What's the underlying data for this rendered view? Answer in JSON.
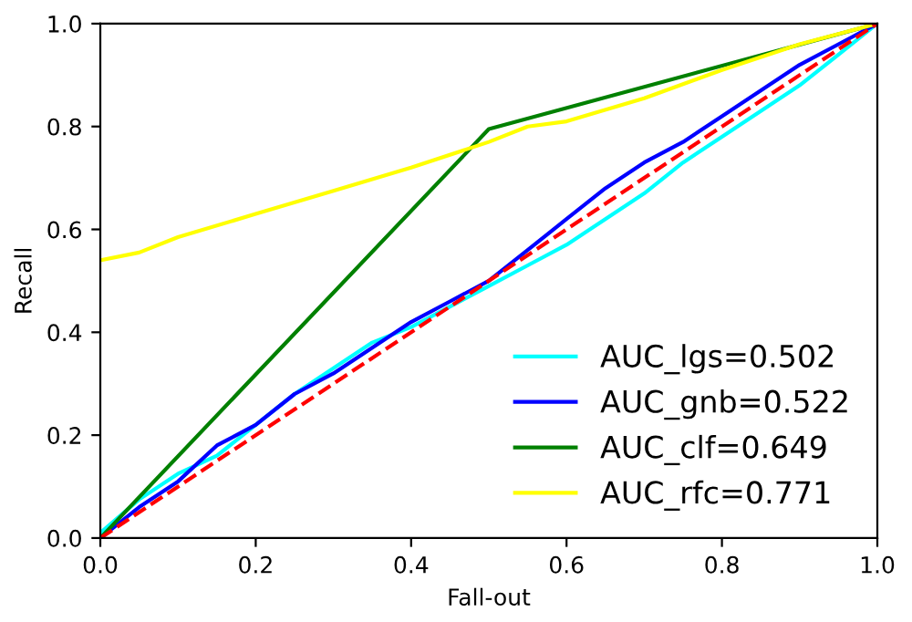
{
  "chart_data": {
    "type": "line",
    "xlabel": "Fall-out",
    "ylabel": "Recall",
    "xlim": [
      0,
      1
    ],
    "ylim": [
      0,
      1
    ],
    "xticks": [
      {
        "value": 0,
        "label": "0.0"
      },
      0.2,
      0.4,
      0.6,
      0.8,
      {
        "value": 1,
        "label": "1.0"
      }
    ],
    "yticks": [
      {
        "value": 0,
        "label": "0.0"
      },
      0.2,
      0.4,
      0.6,
      0.8,
      {
        "value": 1,
        "label": "1.0"
      }
    ],
    "legend": "bottom right",
    "grid": false,
    "series": [
      {
        "name": "AUC_lgs=0.502",
        "color": "#00ffff",
        "x": [
          0,
          0.05,
          0.1,
          0.15,
          0.2,
          0.25,
          0.3,
          0.35,
          0.4,
          0.45,
          0.5,
          0.55,
          0.6,
          0.65,
          0.7,
          0.75,
          0.8,
          0.85,
          0.9,
          0.95,
          1
        ],
        "values": [
          0.01,
          0.075,
          0.125,
          0.16,
          0.22,
          0.28,
          0.33,
          0.38,
          0.41,
          0.45,
          0.49,
          0.53,
          0.57,
          0.62,
          0.67,
          0.73,
          0.78,
          0.83,
          0.88,
          0.94,
          1
        ]
      },
      {
        "name": "AUC_gnb=0.522",
        "color": "#0000ff",
        "x": [
          0,
          0.05,
          0.1,
          0.15,
          0.2,
          0.25,
          0.3,
          0.35,
          0.4,
          0.45,
          0.5,
          0.55,
          0.6,
          0.65,
          0.7,
          0.75,
          0.8,
          0.85,
          0.9,
          0.95,
          1
        ],
        "values": [
          0,
          0.06,
          0.11,
          0.18,
          0.22,
          0.28,
          0.32,
          0.37,
          0.42,
          0.46,
          0.5,
          0.56,
          0.62,
          0.68,
          0.73,
          0.77,
          0.82,
          0.87,
          0.92,
          0.96,
          1
        ]
      },
      {
        "name": "AUC_clf=0.649",
        "color": "#008000",
        "x": [
          0,
          0.5,
          1
        ],
        "values": [
          0,
          0.795,
          1
        ]
      },
      {
        "name": "AUC_rfc=0.771",
        "color": "#ffff00",
        "x": [
          0,
          0.05,
          0.1,
          0.2,
          0.3,
          0.4,
          0.5,
          0.55,
          0.6,
          0.7,
          0.8,
          0.9,
          1
        ],
        "values": [
          0.54,
          0.555,
          0.585,
          0.63,
          0.675,
          0.72,
          0.77,
          0.8,
          0.81,
          0.855,
          0.91,
          0.96,
          1
        ]
      },
      {
        "color": "#ff0000",
        "line_style": "dashed",
        "x": [
          0,
          1
        ],
        "values": [
          0,
          1
        ]
      }
    ]
  }
}
